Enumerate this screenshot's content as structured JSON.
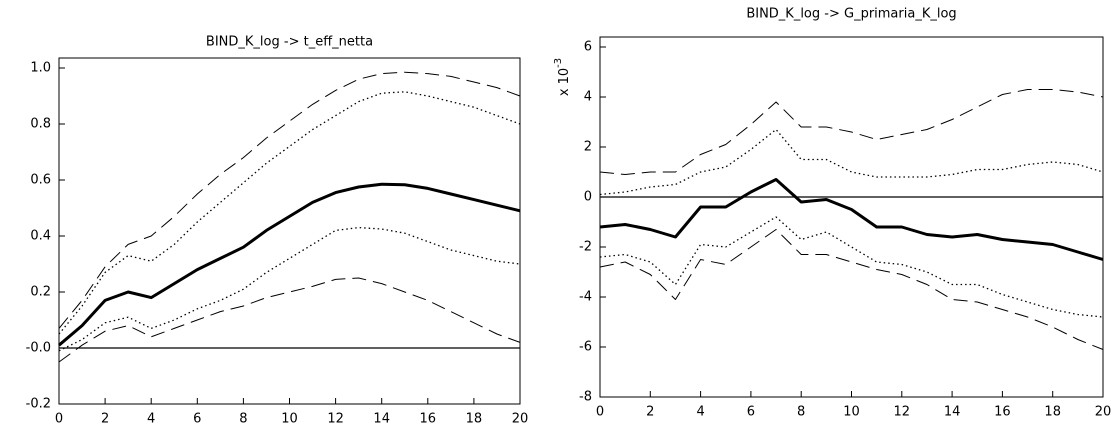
{
  "chart_data": [
    {
      "type": "line",
      "title": "BIND_K_log -> t_eff_netta",
      "x": [
        0,
        1,
        2,
        3,
        4,
        5,
        6,
        7,
        8,
        9,
        10,
        11,
        12,
        13,
        14,
        15,
        16,
        17,
        18,
        19,
        20
      ],
      "xlim": [
        0,
        20
      ],
      "xticks": [
        0,
        2,
        4,
        6,
        8,
        10,
        12,
        14,
        16,
        18,
        20
      ],
      "ylim": [
        -0.2,
        1.0
      ],
      "yticks": [
        -0.2,
        {
          "value": 0,
          "label": "-0.0"
        },
        0.2,
        0.4,
        0.6,
        0.8,
        {
          "value": 1,
          "label": "1.0"
        }
      ],
      "hline": 0,
      "series": [
        {
          "color": "#000000",
          "style": "solid",
          "width": 3,
          "values": [
            0.01,
            0.08,
            0.17,
            0.2,
            0.18,
            0.23,
            0.28,
            0.32,
            0.36,
            0.42,
            0.47,
            0.52,
            0.555,
            0.575,
            0.585,
            0.583,
            0.57,
            0.55,
            0.53,
            0.51,
            0.49
          ]
        },
        {
          "color": "#000000",
          "style": "dashed",
          "width": 1,
          "values": [
            0.07,
            0.17,
            0.29,
            0.37,
            0.4,
            0.47,
            0.55,
            0.62,
            0.68,
            0.75,
            0.81,
            0.87,
            0.92,
            0.96,
            0.98,
            0.985,
            0.98,
            0.97,
            0.95,
            0.93,
            0.9
          ]
        },
        {
          "color": "#000000",
          "style": "dotted",
          "width": 1.3,
          "values": [
            0.05,
            0.15,
            0.27,
            0.33,
            0.31,
            0.37,
            0.45,
            0.52,
            0.59,
            0.66,
            0.72,
            0.78,
            0.83,
            0.88,
            0.91,
            0.915,
            0.9,
            0.88,
            0.86,
            0.83,
            0.8
          ]
        },
        {
          "color": "#000000",
          "style": "dotted",
          "width": 1.3,
          "values": [
            -0.01,
            0.03,
            0.09,
            0.11,
            0.07,
            0.1,
            0.14,
            0.17,
            0.21,
            0.27,
            0.32,
            0.37,
            0.42,
            0.43,
            0.425,
            0.41,
            0.38,
            0.35,
            0.33,
            0.31,
            0.3
          ]
        },
        {
          "color": "#000000",
          "style": "dashed",
          "width": 1,
          "values": [
            -0.05,
            0.01,
            0.06,
            0.08,
            0.04,
            0.07,
            0.1,
            0.13,
            0.15,
            0.18,
            0.2,
            0.22,
            0.245,
            0.25,
            0.23,
            0.2,
            0.17,
            0.13,
            0.09,
            0.05,
            0.02
          ]
        }
      ]
    },
    {
      "type": "line",
      "title": "BIND_K_log -> G_primaria_K_log",
      "scale_label": "x 10",
      "scale_exponent": "-3",
      "x": [
        0,
        1,
        2,
        3,
        4,
        5,
        6,
        7,
        8,
        9,
        10,
        11,
        12,
        13,
        14,
        15,
        16,
        17,
        18,
        19,
        20
      ],
      "xlim": [
        0,
        20
      ],
      "xticks": [
        0,
        2,
        4,
        6,
        8,
        10,
        12,
        14,
        16,
        18,
        20
      ],
      "ylim": [
        -8,
        6
      ],
      "yticks": [
        -8,
        -6,
        -4,
        -2,
        0,
        2,
        4,
        6
      ],
      "hline": 0,
      "series": [
        {
          "color": "#000000",
          "style": "solid",
          "width": 3,
          "values": [
            -1.2,
            -1.1,
            -1.3,
            -1.6,
            -0.4,
            -0.4,
            0.2,
            0.7,
            -0.2,
            -0.1,
            -0.5,
            -1.2,
            -1.2,
            -1.5,
            -1.6,
            -1.5,
            -1.7,
            -1.8,
            -1.9,
            -2.2,
            -2.5
          ]
        },
        {
          "color": "#000000",
          "style": "dashed",
          "width": 1,
          "values": [
            1.0,
            0.9,
            1.0,
            1.0,
            1.7,
            2.1,
            2.9,
            3.8,
            2.8,
            2.8,
            2.6,
            2.3,
            2.5,
            2.7,
            3.1,
            3.6,
            4.1,
            4.3,
            4.3,
            4.2,
            4.0
          ]
        },
        {
          "color": "#000000",
          "style": "dotted",
          "width": 1.3,
          "values": [
            0.1,
            0.2,
            0.4,
            0.5,
            1.0,
            1.2,
            1.9,
            2.7,
            1.5,
            1.5,
            1.0,
            0.8,
            0.8,
            0.8,
            0.9,
            1.1,
            1.1,
            1.3,
            1.4,
            1.3,
            1.0
          ]
        },
        {
          "color": "#000000",
          "style": "dotted",
          "width": 1.3,
          "values": [
            -2.4,
            -2.3,
            -2.6,
            -3.5,
            -1.9,
            -2.0,
            -1.4,
            -0.8,
            -1.7,
            -1.4,
            -2.0,
            -2.6,
            -2.7,
            -3.0,
            -3.5,
            -3.5,
            -3.9,
            -4.2,
            -4.5,
            -4.7,
            -4.8
          ]
        },
        {
          "color": "#000000",
          "style": "dashed",
          "width": 1,
          "values": [
            -2.8,
            -2.6,
            -3.1,
            -4.1,
            -2.5,
            -2.7,
            -2.0,
            -1.3,
            -2.3,
            -2.3,
            -2.6,
            -2.9,
            -3.1,
            -3.5,
            -4.1,
            -4.2,
            -4.5,
            -4.8,
            -5.2,
            -5.7,
            -6.1
          ]
        }
      ]
    }
  ]
}
